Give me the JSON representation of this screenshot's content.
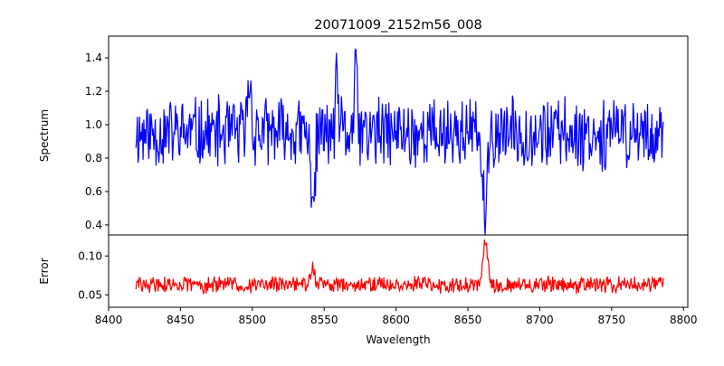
{
  "figure": {
    "title": "20071009_2152m56_008"
  },
  "chart_data": [
    {
      "type": "line",
      "panel": "top",
      "title": "20071009_2152m56_008",
      "xlabel": "",
      "ylabel": "Spectrum",
      "xlim": [
        8400,
        8803
      ],
      "ylim": [
        0.34,
        1.53
      ],
      "yticks": [
        0.4,
        0.6,
        0.8,
        1.0,
        1.2,
        1.4
      ],
      "ytick_labels": [
        "0.4",
        "0.6",
        "0.8",
        "1.0",
        "1.2",
        "1.4"
      ],
      "x_start": 8419,
      "x_step": 0.5,
      "noise": {
        "seed": 11,
        "base": 0.95,
        "amplitude": 0.24
      },
      "features": [
        {
          "center": 8498,
          "width": 1.2,
          "depth": -0.32
        },
        {
          "center": 8542,
          "width": 1.6,
          "depth": 0.38
        },
        {
          "center": 8559,
          "width": 1.0,
          "depth": -0.3
        },
        {
          "center": 8572,
          "width": 1.0,
          "depth": -0.38
        },
        {
          "center": 8662,
          "width": 1.8,
          "depth": 0.5
        }
      ],
      "series": [
        {
          "color": "#0000ff"
        }
      ]
    },
    {
      "type": "line",
      "panel": "bottom",
      "xlabel": "Wavelength",
      "ylabel": "Error",
      "xlim": [
        8400,
        8803
      ],
      "ylim": [
        0.034,
        0.127
      ],
      "xticks": [
        8400,
        8450,
        8500,
        8550,
        8600,
        8650,
        8700,
        8750,
        8800
      ],
      "xtick_labels": [
        "8400",
        "8450",
        "8500",
        "8550",
        "8600",
        "8650",
        "8700",
        "8750",
        "8800"
      ],
      "yticks": [
        0.05,
        0.1
      ],
      "ytick_labels": [
        "0.05",
        "0.10"
      ],
      "x_start": 8419,
      "x_step": 0.5,
      "noise": {
        "seed": 29,
        "base": 0.063,
        "amplitude": 0.012
      },
      "features": [
        {
          "center": 8542,
          "width": 1.5,
          "depth": -0.022
        },
        {
          "center": 8662,
          "width": 1.8,
          "depth": -0.055
        }
      ],
      "series": [
        {
          "color": "#ff0000"
        }
      ]
    }
  ]
}
